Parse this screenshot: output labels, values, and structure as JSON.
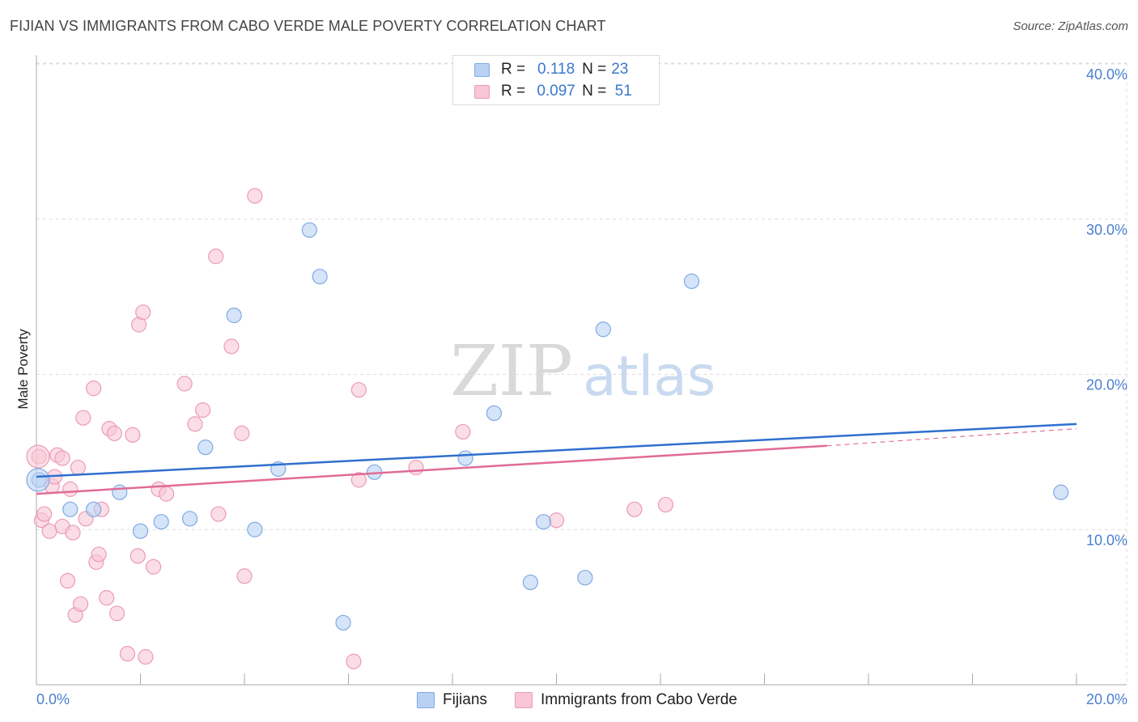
{
  "title": "FIJIAN VS IMMIGRANTS FROM CABO VERDE MALE POVERTY CORRELATION CHART",
  "source": "Source: ZipAtlas.com",
  "watermark": {
    "zip": "ZIP",
    "atlas": "atlas"
  },
  "legend": {
    "rows": [
      {
        "r_label": "R =",
        "r_value": "0.118",
        "n_label": "N =",
        "n_value": "23"
      },
      {
        "r_label": "R =",
        "r_value": "0.097",
        "n_label": "N =",
        "n_value": "51"
      }
    ]
  },
  "colors": {
    "blue_fill": "#b9d2f3",
    "blue_stroke": "#7fa9e4",
    "blue_line": "#2f6fcf",
    "pink_fill": "#f8c6d6",
    "pink_stroke": "#ec9bb5",
    "pink_line": "#e06b98",
    "grid": "#dddddd",
    "tick_text": "#4a7fd0"
  },
  "chart_data": {
    "type": "scatter",
    "title": "FIJIAN VS IMMIGRANTS FROM CABO VERDE MALE POVERTY CORRELATION CHART",
    "xlabel": "",
    "ylabel": "Male Poverty",
    "xlim": [
      0,
      20
    ],
    "ylim": [
      0,
      40
    ],
    "x_tick_labels": [
      "0.0%",
      "20.0%"
    ],
    "y_ticks": [
      10,
      20,
      30,
      40
    ],
    "y_tick_labels": [
      "10.0%",
      "20.0%",
      "30.0%",
      "40.0%"
    ],
    "series": [
      {
        "name": "Fijians",
        "r": 0.118,
        "n": 23,
        "trend": {
          "x0": 0,
          "y0": 13.4,
          "x1": 20,
          "y1": 16.8
        },
        "points": [
          [
            0.05,
            13.2
          ],
          [
            0.65,
            11.3
          ],
          [
            1.1,
            11.3
          ],
          [
            1.6,
            12.4
          ],
          [
            2.0,
            9.9
          ],
          [
            2.4,
            10.5
          ],
          [
            2.95,
            10.7
          ],
          [
            3.25,
            15.3
          ],
          [
            3.8,
            23.8
          ],
          [
            4.2,
            10.0
          ],
          [
            4.65,
            13.9
          ],
          [
            5.25,
            29.3
          ],
          [
            5.45,
            26.3
          ],
          [
            5.9,
            4.0
          ],
          [
            6.5,
            13.7
          ],
          [
            8.25,
            14.6
          ],
          [
            8.8,
            17.5
          ],
          [
            9.5,
            6.6
          ],
          [
            9.75,
            10.5
          ],
          [
            10.55,
            6.9
          ],
          [
            10.9,
            22.9
          ],
          [
            12.6,
            26.0
          ],
          [
            19.7,
            12.4
          ]
        ]
      },
      {
        "name": "Immigrants from Cabo Verde",
        "r": 0.097,
        "n": 51,
        "trend": {
          "x0": 0,
          "y0": 12.3,
          "x1": 15.2,
          "y1": 15.4,
          "dash_x1": 20,
          "dash_y1": 16.5
        },
        "points": [
          [
            0.05,
            14.7
          ],
          [
            0.1,
            10.6
          ],
          [
            0.15,
            11.0
          ],
          [
            0.25,
            9.9
          ],
          [
            0.3,
            12.8
          ],
          [
            0.35,
            13.4
          ],
          [
            0.4,
            14.8
          ],
          [
            0.5,
            10.2
          ],
          [
            0.5,
            14.6
          ],
          [
            0.6,
            6.7
          ],
          [
            0.65,
            12.6
          ],
          [
            0.7,
            9.8
          ],
          [
            0.75,
            4.5
          ],
          [
            0.8,
            14.0
          ],
          [
            0.85,
            5.2
          ],
          [
            0.9,
            17.2
          ],
          [
            0.95,
            10.7
          ],
          [
            1.1,
            19.1
          ],
          [
            1.15,
            7.9
          ],
          [
            1.2,
            8.4
          ],
          [
            1.25,
            11.3
          ],
          [
            1.35,
            5.6
          ],
          [
            1.4,
            16.5
          ],
          [
            1.5,
            16.2
          ],
          [
            1.55,
            4.6
          ],
          [
            1.75,
            2.0
          ],
          [
            1.85,
            16.1
          ],
          [
            1.95,
            8.3
          ],
          [
            1.97,
            23.2
          ],
          [
            2.05,
            24.0
          ],
          [
            2.1,
            1.8
          ],
          [
            2.25,
            7.6
          ],
          [
            2.35,
            12.6
          ],
          [
            2.5,
            12.3
          ],
          [
            2.85,
            19.4
          ],
          [
            3.05,
            16.8
          ],
          [
            3.2,
            17.7
          ],
          [
            3.45,
            27.6
          ],
          [
            3.5,
            11.0
          ],
          [
            3.75,
            21.8
          ],
          [
            3.95,
            16.2
          ],
          [
            4.0,
            7.0
          ],
          [
            4.2,
            31.5
          ],
          [
            6.1,
            1.5
          ],
          [
            6.2,
            19.0
          ],
          [
            6.2,
            13.2
          ],
          [
            7.3,
            14.0
          ],
          [
            8.2,
            16.3
          ],
          [
            10.0,
            10.6
          ],
          [
            11.5,
            11.3
          ],
          [
            12.1,
            11.6
          ]
        ]
      }
    ]
  },
  "bottom_legend": [
    {
      "label": "Fijians"
    },
    {
      "label": "Immigrants from Cabo Verde"
    }
  ]
}
